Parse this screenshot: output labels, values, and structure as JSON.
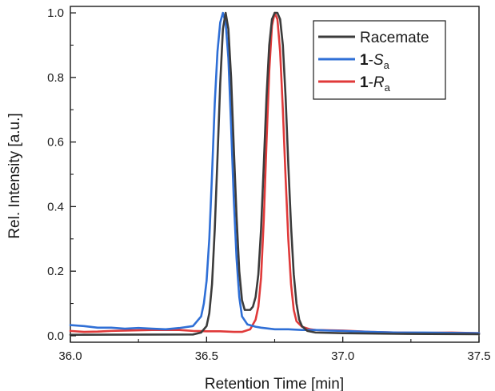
{
  "chart_data": {
    "type": "line",
    "xlabel": "Retention Time [min]",
    "ylabel": "Rel. Intensity [a.u.]",
    "xlim": [
      36.0,
      37.5
    ],
    "ylim": [
      -0.02,
      1.02
    ],
    "x_ticks": [
      "36.0",
      "36.5",
      "37.0",
      "37.5"
    ],
    "y_ticks": [
      "0.0",
      "0.2",
      "0.4",
      "0.6",
      "0.8",
      "1.0"
    ],
    "x_tick_values": [
      36.0,
      36.5,
      37.0,
      37.5
    ],
    "y_tick_values": [
      0.0,
      0.2,
      0.4,
      0.6,
      0.8,
      1.0
    ],
    "grid": false,
    "legend_position": "top-right",
    "series": [
      {
        "name": "Racemate",
        "legend_bold": "",
        "legend_italic": "",
        "legend_sub": "",
        "color": "#3c3c3c",
        "x": [
          36.0,
          36.45,
          36.48,
          36.5,
          36.51,
          36.52,
          36.53,
          36.54,
          36.55,
          36.56,
          36.57,
          36.58,
          36.59,
          36.6,
          36.61,
          36.62,
          36.63,
          36.64,
          36.65,
          36.66,
          36.67,
          36.68,
          36.69,
          36.7,
          36.71,
          36.72,
          36.73,
          36.74,
          36.75,
          36.76,
          36.77,
          36.78,
          36.79,
          36.8,
          36.81,
          36.82,
          36.83,
          36.84,
          36.85,
          36.87,
          36.9,
          37.0,
          37.2,
          37.5
        ],
        "y": [
          0.003,
          0.004,
          0.01,
          0.03,
          0.07,
          0.16,
          0.33,
          0.55,
          0.78,
          0.95,
          1.0,
          0.95,
          0.8,
          0.58,
          0.37,
          0.2,
          0.11,
          0.08,
          0.08,
          0.08,
          0.09,
          0.12,
          0.19,
          0.33,
          0.53,
          0.74,
          0.9,
          0.98,
          1.0,
          1.0,
          0.98,
          0.9,
          0.74,
          0.53,
          0.34,
          0.19,
          0.1,
          0.05,
          0.03,
          0.015,
          0.01,
          0.008,
          0.006,
          0.005
        ]
      },
      {
        "name": "Sa",
        "legend_bold": "1",
        "legend_italic": "S",
        "legend_sub": "a",
        "color": "#2f6fd6",
        "x": [
          36.0,
          36.05,
          36.1,
          36.15,
          36.2,
          36.25,
          36.3,
          36.35,
          36.4,
          36.45,
          36.48,
          36.49,
          36.5,
          36.51,
          36.52,
          36.53,
          36.54,
          36.55,
          36.56,
          36.57,
          36.58,
          36.59,
          36.6,
          36.61,
          36.62,
          36.63,
          36.65,
          36.68,
          36.7,
          36.75,
          36.8,
          36.85,
          36.9,
          36.95,
          37.0,
          37.1,
          37.2,
          37.3,
          37.4,
          37.5
        ],
        "y": [
          0.033,
          0.03,
          0.025,
          0.025,
          0.022,
          0.024,
          0.022,
          0.02,
          0.024,
          0.03,
          0.06,
          0.1,
          0.17,
          0.3,
          0.5,
          0.72,
          0.88,
          0.97,
          1.0,
          0.97,
          0.86,
          0.65,
          0.42,
          0.24,
          0.12,
          0.06,
          0.035,
          0.028,
          0.025,
          0.02,
          0.02,
          0.018,
          0.018,
          0.016,
          0.015,
          0.012,
          0.01,
          0.01,
          0.009,
          0.008
        ]
      },
      {
        "name": "Ra",
        "legend_bold": "1",
        "legend_italic": "R",
        "legend_sub": "a",
        "color": "#e03a3a",
        "x": [
          36.0,
          36.05,
          36.1,
          36.15,
          36.2,
          36.25,
          36.3,
          36.35,
          36.4,
          36.45,
          36.5,
          36.55,
          36.6,
          36.63,
          36.66,
          36.68,
          36.69,
          36.7,
          36.71,
          36.72,
          36.73,
          36.74,
          36.75,
          36.76,
          36.77,
          36.78,
          36.79,
          36.8,
          36.81,
          36.82,
          36.83,
          36.85,
          36.88,
          36.9,
          37.0,
          37.1,
          37.2,
          37.3,
          37.4,
          37.5
        ],
        "y": [
          0.015,
          0.012,
          0.013,
          0.015,
          0.016,
          0.017,
          0.018,
          0.018,
          0.018,
          0.015,
          0.014,
          0.014,
          0.012,
          0.012,
          0.02,
          0.05,
          0.09,
          0.18,
          0.36,
          0.6,
          0.82,
          0.96,
          1.0,
          0.98,
          0.88,
          0.7,
          0.49,
          0.3,
          0.16,
          0.08,
          0.045,
          0.028,
          0.02,
          0.018,
          0.016,
          0.012,
          0.01,
          0.009,
          0.01,
          0.008
        ]
      }
    ]
  }
}
